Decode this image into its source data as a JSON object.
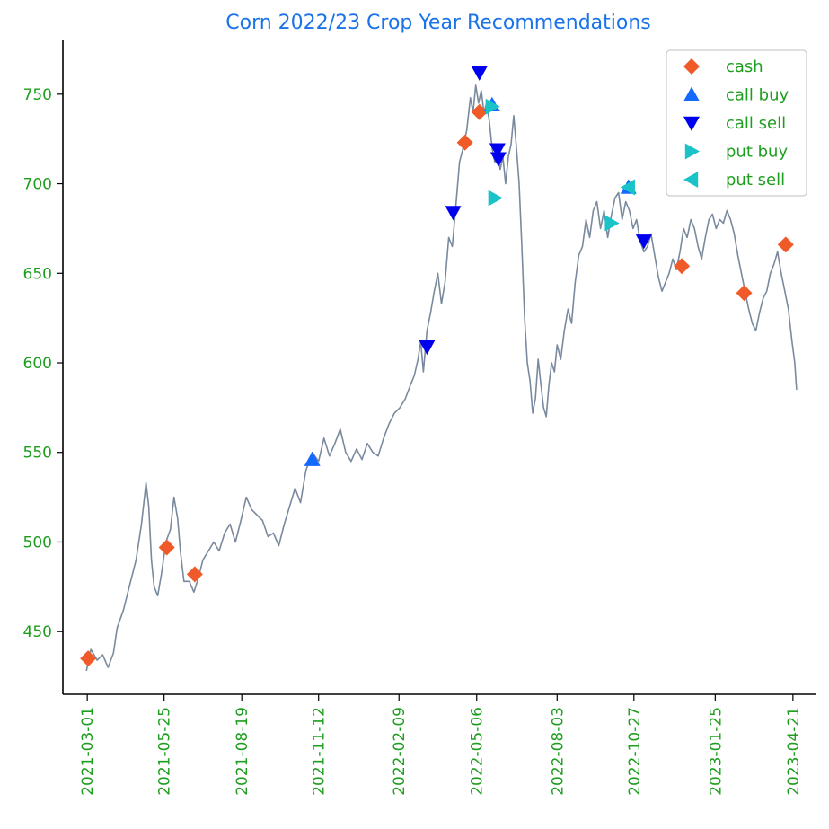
{
  "chart_data": {
    "type": "line",
    "title": "Corn 2022/23 Crop Year Recommendations",
    "xlabel": "",
    "ylabel": "",
    "ylim": [
      415,
      780
    ],
    "xlim": [
      "2021-02-02",
      "2023-05-16"
    ],
    "x_ticks": [
      "2021-03-01",
      "2021-05-25",
      "2021-08-19",
      "2021-11-12",
      "2022-02-09",
      "2022-05-06",
      "2022-08-03",
      "2022-10-27",
      "2023-01-25",
      "2023-04-21"
    ],
    "y_ticks": [
      450,
      500,
      550,
      600,
      650,
      700,
      750
    ],
    "grid": false,
    "legend_position": "top-right",
    "colors": {
      "price": "#7a8a9e",
      "cash": "#f05a28",
      "call_buy": "#1469ff",
      "call_sell": "#0000ee",
      "put_buy": "#19c3c8",
      "put_sell": "#19c3c8",
      "title": "#1a73e8",
      "labels": "#1e9e1e"
    },
    "series": [
      {
        "name": "",
        "color": "#7a8a9e",
        "points": [
          [
            "2021-02-28",
            428
          ],
          [
            "2021-03-05",
            440
          ],
          [
            "2021-03-12",
            434
          ],
          [
            "2021-03-18",
            437
          ],
          [
            "2021-03-24",
            430
          ],
          [
            "2021-03-30",
            438
          ],
          [
            "2021-04-03",
            452
          ],
          [
            "2021-04-10",
            462
          ],
          [
            "2021-04-17",
            476
          ],
          [
            "2021-04-24",
            490
          ],
          [
            "2021-04-30",
            510
          ],
          [
            "2021-05-05",
            533
          ],
          [
            "2021-05-08",
            520
          ],
          [
            "2021-05-11",
            490
          ],
          [
            "2021-05-14",
            475
          ],
          [
            "2021-05-18",
            470
          ],
          [
            "2021-05-22",
            482
          ],
          [
            "2021-05-27",
            500
          ],
          [
            "2021-06-01",
            507
          ],
          [
            "2021-06-05",
            525
          ],
          [
            "2021-06-09",
            513
          ],
          [
            "2021-06-12",
            495
          ],
          [
            "2021-06-16",
            478
          ],
          [
            "2021-06-22",
            478
          ],
          [
            "2021-06-27",
            472
          ],
          [
            "2021-07-02",
            480
          ],
          [
            "2021-07-07",
            490
          ],
          [
            "2021-07-13",
            495
          ],
          [
            "2021-07-19",
            500
          ],
          [
            "2021-07-25",
            495
          ],
          [
            "2021-07-31",
            505
          ],
          [
            "2021-08-06",
            510
          ],
          [
            "2021-08-12",
            500
          ],
          [
            "2021-08-18",
            512
          ],
          [
            "2021-08-24",
            525
          ],
          [
            "2021-08-30",
            518
          ],
          [
            "2021-09-05",
            515
          ],
          [
            "2021-09-11",
            512
          ],
          [
            "2021-09-17",
            503
          ],
          [
            "2021-09-23",
            505
          ],
          [
            "2021-09-29",
            498
          ],
          [
            "2021-10-05",
            510
          ],
          [
            "2021-10-11",
            520
          ],
          [
            "2021-10-17",
            530
          ],
          [
            "2021-10-23",
            522
          ],
          [
            "2021-10-29",
            540
          ],
          [
            "2021-11-05",
            550
          ],
          [
            "2021-11-12",
            545
          ],
          [
            "2021-11-18",
            558
          ],
          [
            "2021-11-24",
            548
          ],
          [
            "2021-11-30",
            555
          ],
          [
            "2021-12-06",
            563
          ],
          [
            "2021-12-12",
            550
          ],
          [
            "2021-12-18",
            545
          ],
          [
            "2021-12-24",
            552
          ],
          [
            "2021-12-30",
            546
          ],
          [
            "2022-01-05",
            555
          ],
          [
            "2022-01-11",
            550
          ],
          [
            "2022-01-17",
            548
          ],
          [
            "2022-01-23",
            558
          ],
          [
            "2022-01-29",
            566
          ],
          [
            "2022-02-04",
            572
          ],
          [
            "2022-02-10",
            575
          ],
          [
            "2022-02-16",
            580
          ],
          [
            "2022-02-22",
            588
          ],
          [
            "2022-02-26",
            593
          ],
          [
            "2022-03-02",
            602
          ],
          [
            "2022-03-05",
            612
          ],
          [
            "2022-03-08",
            595
          ],
          [
            "2022-03-12",
            618
          ],
          [
            "2022-03-16",
            628
          ],
          [
            "2022-03-20",
            640
          ],
          [
            "2022-03-24",
            650
          ],
          [
            "2022-03-28",
            633
          ],
          [
            "2022-04-01",
            645
          ],
          [
            "2022-04-05",
            670
          ],
          [
            "2022-04-09",
            665
          ],
          [
            "2022-04-13",
            688
          ],
          [
            "2022-04-17",
            712
          ],
          [
            "2022-04-21",
            720
          ],
          [
            "2022-04-25",
            730
          ],
          [
            "2022-04-29",
            748
          ],
          [
            "2022-05-02",
            740
          ],
          [
            "2022-05-05",
            755
          ],
          [
            "2022-05-08",
            745
          ],
          [
            "2022-05-11",
            752
          ],
          [
            "2022-05-14",
            740
          ],
          [
            "2022-05-17",
            745
          ],
          [
            "2022-05-20",
            735
          ],
          [
            "2022-05-23",
            720
          ],
          [
            "2022-05-26",
            712
          ],
          [
            "2022-05-29",
            720
          ],
          [
            "2022-06-01",
            708
          ],
          [
            "2022-06-04",
            715
          ],
          [
            "2022-06-07",
            700
          ],
          [
            "2022-06-10",
            715
          ],
          [
            "2022-06-13",
            722
          ],
          [
            "2022-06-16",
            738
          ],
          [
            "2022-06-19",
            720
          ],
          [
            "2022-06-22",
            700
          ],
          [
            "2022-06-25",
            665
          ],
          [
            "2022-06-28",
            625
          ],
          [
            "2022-07-01",
            600
          ],
          [
            "2022-07-04",
            590
          ],
          [
            "2022-07-07",
            572
          ],
          [
            "2022-07-10",
            580
          ],
          [
            "2022-07-13",
            602
          ],
          [
            "2022-07-16",
            588
          ],
          [
            "2022-07-19",
            575
          ],
          [
            "2022-07-22",
            570
          ],
          [
            "2022-07-25",
            588
          ],
          [
            "2022-07-28",
            600
          ],
          [
            "2022-07-31",
            595
          ],
          [
            "2022-08-03",
            610
          ],
          [
            "2022-08-07",
            602
          ],
          [
            "2022-08-11",
            618
          ],
          [
            "2022-08-15",
            630
          ],
          [
            "2022-08-19",
            622
          ],
          [
            "2022-08-23",
            645
          ],
          [
            "2022-08-27",
            660
          ],
          [
            "2022-08-31",
            665
          ],
          [
            "2022-09-04",
            680
          ],
          [
            "2022-09-08",
            670
          ],
          [
            "2022-09-12",
            685
          ],
          [
            "2022-09-16",
            690
          ],
          [
            "2022-09-20",
            675
          ],
          [
            "2022-09-24",
            685
          ],
          [
            "2022-09-28",
            670
          ],
          [
            "2022-10-02",
            682
          ],
          [
            "2022-10-06",
            692
          ],
          [
            "2022-10-10",
            695
          ],
          [
            "2022-10-14",
            680
          ],
          [
            "2022-10-18",
            690
          ],
          [
            "2022-10-22",
            685
          ],
          [
            "2022-10-26",
            675
          ],
          [
            "2022-10-30",
            680
          ],
          [
            "2022-11-03",
            668
          ],
          [
            "2022-11-07",
            662
          ],
          [
            "2022-11-11",
            665
          ],
          [
            "2022-11-15",
            672
          ],
          [
            "2022-11-19",
            660
          ],
          [
            "2022-11-23",
            648
          ],
          [
            "2022-11-27",
            640
          ],
          [
            "2022-12-01",
            645
          ],
          [
            "2022-12-05",
            650
          ],
          [
            "2022-12-09",
            658
          ],
          [
            "2022-12-13",
            652
          ],
          [
            "2022-12-17",
            662
          ],
          [
            "2022-12-21",
            675
          ],
          [
            "2022-12-25",
            670
          ],
          [
            "2022-12-29",
            680
          ],
          [
            "2023-01-02",
            675
          ],
          [
            "2023-01-06",
            665
          ],
          [
            "2023-01-10",
            658
          ],
          [
            "2023-01-14",
            670
          ],
          [
            "2023-01-18",
            680
          ],
          [
            "2023-01-22",
            683
          ],
          [
            "2023-01-26",
            675
          ],
          [
            "2023-01-30",
            680
          ],
          [
            "2023-02-03",
            678
          ],
          [
            "2023-02-07",
            685
          ],
          [
            "2023-02-11",
            680
          ],
          [
            "2023-02-15",
            672
          ],
          [
            "2023-02-19",
            660
          ],
          [
            "2023-02-23",
            650
          ],
          [
            "2023-02-27",
            640
          ],
          [
            "2023-03-03",
            630
          ],
          [
            "2023-03-07",
            622
          ],
          [
            "2023-03-11",
            618
          ],
          [
            "2023-03-15",
            628
          ],
          [
            "2023-03-19",
            636
          ],
          [
            "2023-03-23",
            640
          ],
          [
            "2023-03-27",
            650
          ],
          [
            "2023-03-31",
            655
          ],
          [
            "2023-04-04",
            662
          ],
          [
            "2023-04-08",
            650
          ],
          [
            "2023-04-12",
            640
          ],
          [
            "2023-04-16",
            630
          ],
          [
            "2023-04-20",
            612
          ],
          [
            "2023-04-23",
            600
          ],
          [
            "2023-04-25",
            585
          ]
        ]
      }
    ],
    "markers": [
      {
        "name": "cash",
        "shape": "diamond",
        "points": [
          [
            "2021-03-02",
            435
          ],
          [
            "2021-05-28",
            497
          ],
          [
            "2021-06-28",
            482
          ],
          [
            "2022-04-23",
            723
          ],
          [
            "2022-05-09",
            740
          ],
          [
            "2022-12-19",
            654
          ],
          [
            "2023-02-26",
            639
          ],
          [
            "2023-04-13",
            666
          ]
        ]
      },
      {
        "name": "call buy",
        "shape": "triangle-up",
        "points": [
          [
            "2021-11-05",
            546
          ],
          [
            "2022-05-23",
            744
          ],
          [
            "2022-10-21",
            698
          ]
        ]
      },
      {
        "name": "call sell",
        "shape": "triangle-down",
        "points": [
          [
            "2022-03-12",
            609
          ],
          [
            "2022-04-10",
            684
          ],
          [
            "2022-05-09",
            762
          ],
          [
            "2022-05-29",
            719
          ],
          [
            "2022-05-30",
            714
          ],
          [
            "2022-11-07",
            668
          ]
        ]
      },
      {
        "name": "put buy",
        "shape": "triangle-right",
        "points": [
          [
            "2022-05-23",
            743
          ],
          [
            "2022-05-26",
            692
          ],
          [
            "2022-10-02",
            678
          ]
        ]
      },
      {
        "name": "put sell",
        "shape": "triangle-left",
        "points": [
          [
            "2022-10-21",
            698
          ]
        ]
      }
    ]
  }
}
